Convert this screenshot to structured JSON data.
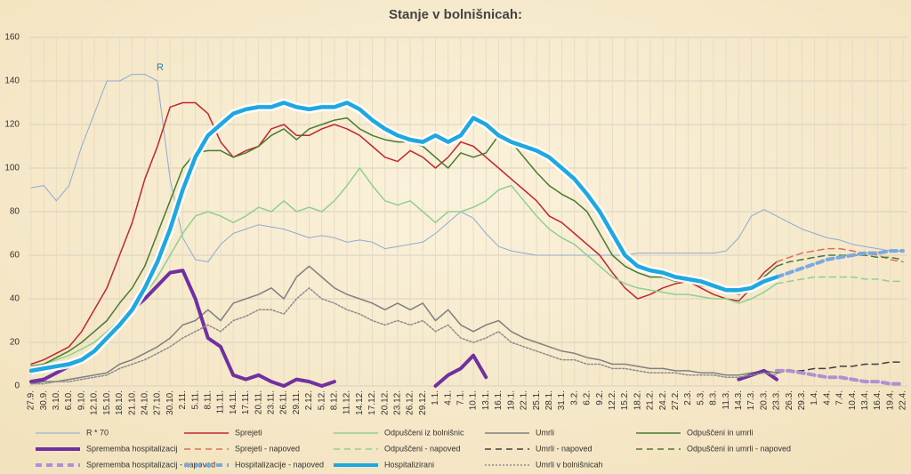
{
  "chart_data": {
    "type": "line",
    "title": "Stanje v bolnišnicah:",
    "categories": [
      "27.9.",
      "30.9.",
      "3.10.",
      "6.10.",
      "9.10.",
      "12.10.",
      "15.10.",
      "18.10.",
      "21.10.",
      "24.10.",
      "27.10.",
      "30.10.",
      "2.11.",
      "5.11.",
      "8.11.",
      "11.11.",
      "14.11.",
      "17.11.",
      "20.11.",
      "23.11.",
      "26.11.",
      "29.11.",
      "2.12.",
      "5.12.",
      "8.12.",
      "11.12.",
      "14.12.",
      "17.12.",
      "20.12.",
      "23.12.",
      "26.12.",
      "29.12.",
      "1.1.",
      "4.1.",
      "7.1.",
      "10.1.",
      "13.1.",
      "16.1.",
      "19.1.",
      "22.1.",
      "25.1.",
      "28.1.",
      "31.1.",
      "3.2.",
      "6.2.",
      "9.2.",
      "12.2.",
      "15.2.",
      "18.2.",
      "21.2.",
      "24.2.",
      "27.2.",
      "2.3.",
      "5.3.",
      "8.3.",
      "11.3.",
      "14.3.",
      "17.3.",
      "20.3.",
      "23.3.",
      "26.3.",
      "29.3.",
      "1.4.",
      "4.4.",
      "7.4.",
      "10.4.",
      "13.4.",
      "16.4.",
      "19.4.",
      "22.4."
    ],
    "ylim": [
      0,
      160
    ],
    "yticks": [
      0,
      20,
      40,
      60,
      80,
      100,
      120,
      140,
      160
    ],
    "grid": true,
    "annotation": "R",
    "series": [
      {
        "name": "R * 70",
        "color": "#8eaad0",
        "style": "solid",
        "weight": "thin",
        "values": [
          91,
          92,
          85,
          92,
          110,
          125,
          140,
          140,
          143,
          143,
          140,
          95,
          68,
          58,
          57,
          65,
          70,
          72,
          74,
          73,
          72,
          70,
          68,
          69,
          68,
          66,
          67,
          66,
          63,
          64,
          65,
          66,
          70,
          75,
          80,
          77,
          70,
          64,
          62,
          61,
          60,
          60,
          60,
          60,
          60,
          60,
          60,
          60,
          61,
          61,
          61,
          61,
          61,
          61,
          61,
          62,
          68,
          78,
          81,
          78,
          75,
          72,
          70,
          68,
          67,
          65,
          64,
          63,
          62,
          62
        ]
      },
      {
        "name": "Sprejeti",
        "color": "#c0282d",
        "style": "solid",
        "weight": "normal",
        "values": [
          10,
          12,
          15,
          18,
          25,
          35,
          45,
          60,
          75,
          95,
          110,
          128,
          130,
          130,
          125,
          112,
          105,
          108,
          110,
          118,
          120,
          115,
          115,
          118,
          120,
          118,
          115,
          110,
          105,
          103,
          108,
          105,
          100,
          105,
          112,
          110,
          105,
          100,
          95,
          90,
          85,
          78,
          75,
          70,
          65,
          60,
          52,
          45,
          40,
          42,
          45,
          47,
          48,
          45,
          42,
          40,
          39,
          45,
          52,
          57,
          null,
          null,
          null,
          null,
          null,
          null,
          null,
          null,
          null,
          null
        ]
      },
      {
        "name": "Odpuščeni iz bolnišnic",
        "color": "#8fd08f",
        "style": "solid",
        "weight": "normal",
        "values": [
          8,
          10,
          12,
          14,
          17,
          20,
          25,
          30,
          35,
          42,
          50,
          60,
          70,
          78,
          80,
          78,
          75,
          78,
          82,
          80,
          85,
          80,
          82,
          80,
          85,
          92,
          100,
          92,
          85,
          83,
          85,
          80,
          75,
          80,
          80,
          82,
          85,
          90,
          92,
          85,
          78,
          72,
          68,
          65,
          60,
          55,
          50,
          47,
          45,
          44,
          43,
          42,
          42,
          41,
          40,
          40,
          38,
          40,
          43,
          47,
          null,
          null,
          null,
          null,
          null,
          null,
          null,
          null,
          null,
          null
        ]
      },
      {
        "name": "Umrli",
        "color": "#808080",
        "style": "solid",
        "weight": "normal",
        "values": [
          1,
          2,
          2,
          3,
          4,
          5,
          6,
          10,
          12,
          15,
          18,
          22,
          28,
          30,
          35,
          30,
          38,
          40,
          42,
          45,
          40,
          50,
          55,
          50,
          45,
          42,
          40,
          38,
          35,
          38,
          35,
          38,
          30,
          35,
          28,
          25,
          28,
          30,
          25,
          22,
          20,
          18,
          16,
          15,
          13,
          12,
          10,
          10,
          9,
          8,
          8,
          7,
          7,
          6,
          6,
          5,
          5,
          6,
          7,
          6,
          null,
          null,
          null,
          null,
          null,
          null,
          null,
          null,
          null,
          null
        ]
      },
      {
        "name": "Odpuščeni in umrli",
        "color": "#4a7a30",
        "style": "solid",
        "weight": "normal",
        "values": [
          9,
          10,
          13,
          16,
          20,
          25,
          30,
          38,
          45,
          55,
          70,
          85,
          100,
          107,
          108,
          108,
          105,
          107,
          110,
          115,
          118,
          113,
          118,
          120,
          122,
          123,
          118,
          115,
          113,
          112,
          112,
          110,
          105,
          100,
          107,
          105,
          107,
          115,
          112,
          105,
          98,
          92,
          88,
          85,
          80,
          70,
          60,
          55,
          52,
          50,
          50,
          48,
          48,
          46,
          45,
          44,
          42,
          45,
          50,
          55,
          null,
          null,
          null,
          null,
          null,
          null,
          null,
          null,
          null,
          null
        ]
      },
      {
        "name": "Sprememba hospitalizacij",
        "color": "#7030a0",
        "style": "solid",
        "weight": "bold",
        "values": [
          2,
          3,
          6,
          9,
          12,
          16,
          22,
          28,
          35,
          40,
          46,
          52,
          53,
          40,
          22,
          18,
          5,
          3,
          5,
          2,
          0,
          3,
          2,
          0,
          2,
          null,
          null,
          null,
          null,
          null,
          null,
          null,
          0,
          5,
          8,
          14,
          4,
          null,
          null,
          null,
          null,
          null,
          null,
          null,
          null,
          null,
          null,
          null,
          null,
          null,
          null,
          null,
          null,
          null,
          null,
          null,
          3,
          5,
          7,
          3,
          null,
          null,
          null,
          null,
          null,
          null,
          null,
          null,
          null,
          null
        ]
      },
      {
        "name": "Sprejeti - napoved",
        "color": "#e07050",
        "style": "dashed",
        "weight": "normal",
        "values": [
          null,
          null,
          null,
          null,
          null,
          null,
          null,
          null,
          null,
          null,
          null,
          null,
          null,
          null,
          null,
          null,
          null,
          null,
          null,
          null,
          null,
          null,
          null,
          null,
          null,
          null,
          null,
          null,
          null,
          null,
          null,
          null,
          null,
          null,
          null,
          null,
          null,
          null,
          null,
          null,
          null,
          null,
          null,
          null,
          null,
          null,
          null,
          null,
          null,
          null,
          null,
          null,
          null,
          null,
          null,
          null,
          null,
          null,
          null,
          57,
          59,
          61,
          62,
          63,
          63,
          62,
          61,
          60,
          58,
          57
        ]
      },
      {
        "name": "Odpuščeni - napoved",
        "color": "#8fd08f",
        "style": "dashed",
        "weight": "normal",
        "values": [
          null,
          null,
          null,
          null,
          null,
          null,
          null,
          null,
          null,
          null,
          null,
          null,
          null,
          null,
          null,
          null,
          null,
          null,
          null,
          null,
          null,
          null,
          null,
          null,
          null,
          null,
          null,
          null,
          null,
          null,
          null,
          null,
          null,
          null,
          null,
          null,
          null,
          null,
          null,
          null,
          null,
          null,
          null,
          null,
          null,
          null,
          null,
          null,
          null,
          null,
          null,
          null,
          null,
          null,
          null,
          null,
          null,
          null,
          null,
          47,
          48,
          49,
          50,
          50,
          50,
          50,
          49,
          49,
          48,
          48
        ]
      },
      {
        "name": "Umrli - napoved",
        "color": "#404040",
        "style": "dashed",
        "weight": "normal",
        "values": [
          null,
          null,
          null,
          null,
          null,
          null,
          null,
          null,
          null,
          null,
          null,
          null,
          null,
          null,
          null,
          null,
          null,
          null,
          null,
          null,
          null,
          null,
          null,
          null,
          null,
          null,
          null,
          null,
          null,
          null,
          null,
          null,
          null,
          null,
          null,
          null,
          null,
          null,
          null,
          null,
          null,
          null,
          null,
          null,
          null,
          null,
          null,
          null,
          null,
          null,
          null,
          null,
          null,
          null,
          null,
          null,
          null,
          null,
          null,
          6,
          7,
          7,
          8,
          8,
          9,
          9,
          10,
          10,
          11,
          11
        ]
      },
      {
        "name": "Odpuščeni in umrli - napoved",
        "color": "#4a7a30",
        "style": "dashed",
        "weight": "normal",
        "values": [
          null,
          null,
          null,
          null,
          null,
          null,
          null,
          null,
          null,
          null,
          null,
          null,
          null,
          null,
          null,
          null,
          null,
          null,
          null,
          null,
          null,
          null,
          null,
          null,
          null,
          null,
          null,
          null,
          null,
          null,
          null,
          null,
          null,
          null,
          null,
          null,
          null,
          null,
          null,
          null,
          null,
          null,
          null,
          null,
          null,
          null,
          null,
          null,
          null,
          null,
          null,
          null,
          null,
          null,
          null,
          null,
          null,
          null,
          null,
          55,
          57,
          58,
          59,
          60,
          60,
          60,
          60,
          59,
          59,
          58
        ]
      },
      {
        "name": "Sprememba hospitalizacij - napoved",
        "color": "#b090d0",
        "style": "dashed",
        "weight": "bold",
        "values": [
          null,
          null,
          null,
          null,
          null,
          null,
          null,
          null,
          null,
          null,
          null,
          null,
          null,
          null,
          null,
          null,
          null,
          null,
          null,
          null,
          null,
          null,
          null,
          null,
          null,
          null,
          null,
          null,
          null,
          null,
          null,
          null,
          null,
          null,
          null,
          null,
          null,
          null,
          null,
          null,
          null,
          null,
          null,
          null,
          null,
          null,
          null,
          null,
          null,
          null,
          null,
          null,
          null,
          null,
          null,
          null,
          null,
          null,
          null,
          7,
          7,
          6,
          5,
          4,
          4,
          3,
          2,
          2,
          1,
          1
        ]
      },
      {
        "name": "Hospitalizacije - napoved",
        "color": "#7aa8e0",
        "style": "dashed",
        "weight": "bold",
        "values": [
          null,
          null,
          null,
          null,
          null,
          null,
          null,
          null,
          null,
          null,
          null,
          null,
          null,
          null,
          null,
          null,
          null,
          null,
          null,
          null,
          null,
          null,
          null,
          null,
          null,
          null,
          null,
          null,
          null,
          null,
          null,
          null,
          null,
          null,
          null,
          null,
          null,
          null,
          null,
          null,
          null,
          null,
          null,
          null,
          null,
          null,
          null,
          null,
          null,
          null,
          null,
          null,
          null,
          null,
          null,
          null,
          null,
          null,
          null,
          50,
          52,
          54,
          56,
          58,
          59,
          60,
          61,
          61,
          62,
          62
        ]
      },
      {
        "name": "Hospitalizirani",
        "color": "#1ea7e1",
        "style": "solid",
        "weight": "heavy",
        "values": [
          7,
          8,
          9,
          10,
          12,
          16,
          22,
          28,
          35,
          45,
          57,
          72,
          90,
          105,
          115,
          120,
          125,
          127,
          128,
          128,
          130,
          128,
          127,
          128,
          128,
          130,
          127,
          122,
          118,
          115,
          113,
          112,
          115,
          112,
          115,
          123,
          120,
          115,
          112,
          110,
          108,
          105,
          100,
          95,
          88,
          80,
          70,
          60,
          55,
          53,
          52,
          50,
          49,
          48,
          46,
          44,
          44,
          45,
          48,
          50,
          null,
          null,
          null,
          null,
          null,
          null,
          null,
          null,
          null,
          null
        ]
      },
      {
        "name": "Umrli v bolnišnicah",
        "color": "#8c8c8c",
        "style": "dotted",
        "weight": "normal",
        "values": [
          1,
          1,
          2,
          2,
          3,
          4,
          5,
          8,
          10,
          12,
          15,
          18,
          22,
          25,
          28,
          25,
          30,
          32,
          35,
          35,
          33,
          40,
          45,
          40,
          38,
          35,
          33,
          30,
          28,
          30,
          28,
          30,
          25,
          28,
          22,
          20,
          22,
          25,
          20,
          18,
          16,
          14,
          12,
          12,
          10,
          10,
          8,
          8,
          7,
          6,
          6,
          6,
          5,
          5,
          5,
          4,
          4,
          5,
          6,
          5,
          null,
          null,
          null,
          null,
          null,
          null,
          null,
          null,
          null,
          null
        ]
      }
    ]
  }
}
